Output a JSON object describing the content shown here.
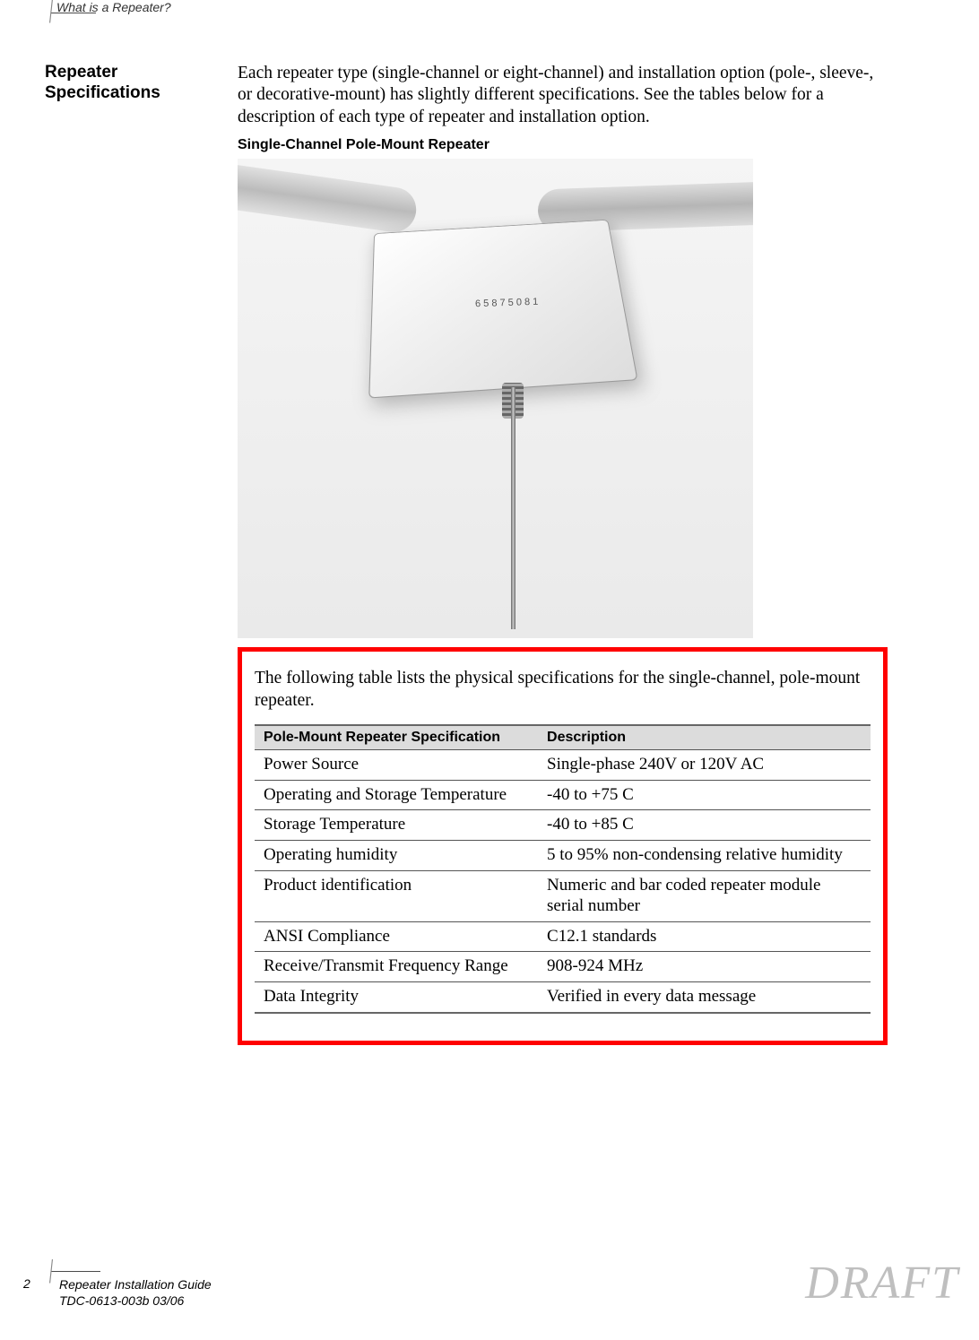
{
  "header": {
    "section_title": "What is a Repeater?"
  },
  "side": {
    "heading_line1": "Repeater",
    "heading_line2": "Specifications"
  },
  "intro": {
    "text": "Each repeater type (single-channel or eight-channel) and installation option (pole-, sleeve-, or decorative-mount) has slightly different specifications. See the tables below for a description of each type of repeater and installation option."
  },
  "sub_heading": "Single-Channel Pole-Mount Repeater",
  "figure": {
    "label": "6 5 8 7 5 0 8 1"
  },
  "redbox": {
    "intro": "The following table lists the physical specifications for the single-channel, pole-mount repeater.",
    "table": {
      "columns": [
        "Pole-Mount Repeater Specification",
        "Description"
      ],
      "rows": [
        [
          "Power Source",
          "Single-phase 240V or 120V AC"
        ],
        [
          "Operating and Storage Temperature",
          "-40 to +75 C"
        ],
        [
          "Storage Temperature",
          "-40 to +85 C"
        ],
        [
          "Operating humidity",
          "5 to 95% non-condensing relative humidity"
        ],
        [
          "Product identification",
          "Numeric and bar coded repeater module serial number"
        ],
        [
          "ANSI Compliance",
          "C12.1 standards"
        ],
        [
          "Receive/Transmit Frequency Range",
          "908-924 MHz"
        ],
        [
          "Data Integrity",
          "Verified in every data message"
        ]
      ],
      "header_bg": "#dcdcdc",
      "border_color": "#555555",
      "header_font_size": 16,
      "cell_font_size": 19
    },
    "border_color": "#ff0000",
    "border_width": 5
  },
  "footer": {
    "page_number": "2",
    "line1": "Repeater Installation Guide",
    "line2": "TDC-0613-003b   03/06",
    "watermark": "DRAFT"
  },
  "colors": {
    "background": "#ffffff",
    "text": "#000000",
    "watermark": "#bfbfbf"
  }
}
